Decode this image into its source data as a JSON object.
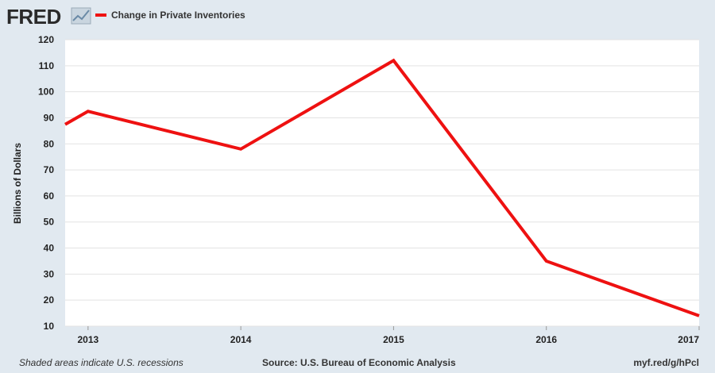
{
  "brand": {
    "name": "FRED"
  },
  "legend": {
    "label": "Change in Private Inventories",
    "color": "#ee1111"
  },
  "footer": {
    "recessions_note": "Shaded areas indicate U.S. recessions",
    "source": "Source: U.S. Bureau of Economic Analysis",
    "short_url": "myf.red/g/hPcl"
  },
  "chart_data": {
    "type": "line",
    "title": "",
    "xlabel": "",
    "ylabel": "Billions of Dollars",
    "ylim": [
      10,
      120
    ],
    "yticks": [
      10,
      20,
      30,
      40,
      50,
      60,
      70,
      80,
      90,
      100,
      110,
      120
    ],
    "xticks": [
      "2013",
      "2014",
      "2015",
      "2016",
      "2017"
    ],
    "xlim": [
      2012.85,
      2017.0
    ],
    "grid": true,
    "legend_position": "top-left",
    "series": [
      {
        "name": "Change in Private Inventories",
        "color": "#ee1111",
        "x": [
          2012.85,
          2013.0,
          2014.0,
          2015.0,
          2016.0,
          2017.0
        ],
        "y": [
          87.5,
          92.5,
          78,
          112,
          35,
          14
        ]
      }
    ]
  }
}
